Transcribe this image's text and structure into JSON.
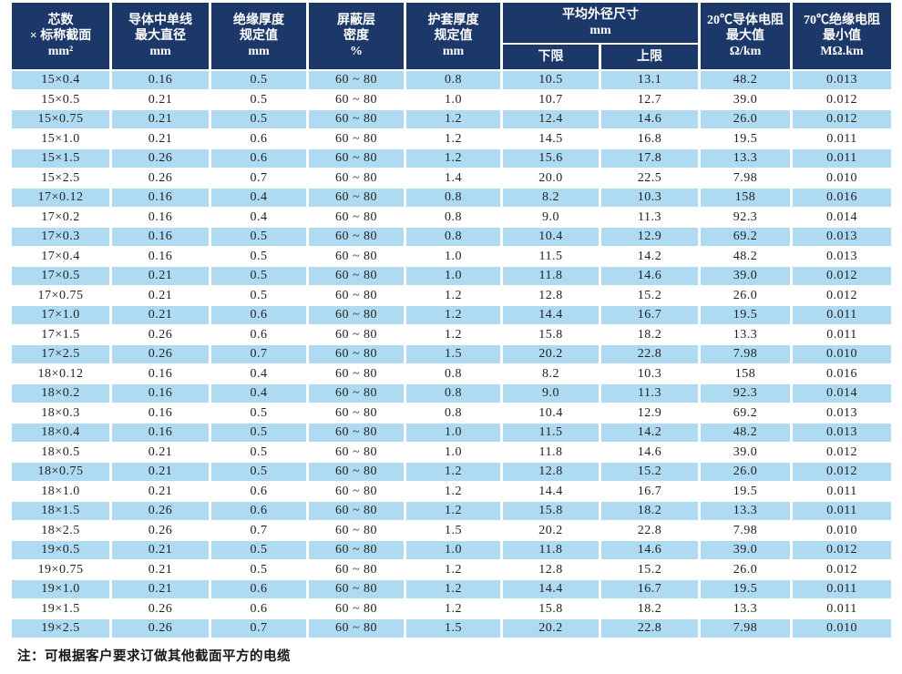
{
  "colors": {
    "header_bg": "#1B3869",
    "header_text": "#FFFFFF",
    "row_alt_bg": "#AFDBF2",
    "row_bg": "#FFFFFF",
    "text": "#1F1F1F"
  },
  "table": {
    "header": {
      "columns": [
        {
          "lines": [
            "芯数",
            "× 标称截面",
            "mm²"
          ]
        },
        {
          "lines": [
            "导体中单线",
            "最大直径",
            "mm"
          ]
        },
        {
          "lines": [
            "绝缘厚度",
            "规定值",
            "mm"
          ]
        },
        {
          "lines": [
            "屏蔽层",
            "密度",
            "%"
          ]
        },
        {
          "lines": [
            "护套厚度",
            "规定值",
            "mm"
          ]
        },
        {
          "lines": [
            "20℃导体电阻",
            "最大值",
            "Ω/km"
          ]
        },
        {
          "lines": [
            "70℃绝缘电阻",
            "最小值",
            "MΩ.km"
          ]
        }
      ],
      "od_group": {
        "lines": [
          "平均外径尺寸",
          "mm"
        ],
        "sub": [
          "下限",
          "上限"
        ]
      }
    },
    "rows": [
      [
        "15×0.4",
        "0.16",
        "0.5",
        "60 ~ 80",
        "0.8",
        "10.5",
        "13.1",
        "48.2",
        "0.013"
      ],
      [
        "15×0.5",
        "0.21",
        "0.5",
        "60 ~ 80",
        "1.0",
        "10.7",
        "12.7",
        "39.0",
        "0.012"
      ],
      [
        "15×0.75",
        "0.21",
        "0.5",
        "60 ~ 80",
        "1.2",
        "12.4",
        "14.6",
        "26.0",
        "0.012"
      ],
      [
        "15×1.0",
        "0.21",
        "0.6",
        "60 ~ 80",
        "1.2",
        "14.5",
        "16.8",
        "19.5",
        "0.011"
      ],
      [
        "15×1.5",
        "0.26",
        "0.6",
        "60 ~ 80",
        "1.2",
        "15.6",
        "17.8",
        "13.3",
        "0.011"
      ],
      [
        "15×2.5",
        "0.26",
        "0.7",
        "60 ~ 80",
        "1.4",
        "20.0",
        "22.5",
        "7.98",
        "0.010"
      ],
      [
        "17×0.12",
        "0.16",
        "0.4",
        "60 ~ 80",
        "0.8",
        "8.2",
        "10.3",
        "158",
        "0.016"
      ],
      [
        "17×0.2",
        "0.16",
        "0.4",
        "60 ~ 80",
        "0.8",
        "9.0",
        "11.3",
        "92.3",
        "0.014"
      ],
      [
        "17×0.3",
        "0.16",
        "0.5",
        "60 ~ 80",
        "0.8",
        "10.4",
        "12.9",
        "69.2",
        "0.013"
      ],
      [
        "17×0.4",
        "0.16",
        "0.5",
        "60 ~ 80",
        "1.0",
        "11.5",
        "14.2",
        "48.2",
        "0.013"
      ],
      [
        "17×0.5",
        "0.21",
        "0.5",
        "60 ~ 80",
        "1.0",
        "11.8",
        "14.6",
        "39.0",
        "0.012"
      ],
      [
        "17×0.75",
        "0.21",
        "0.5",
        "60 ~ 80",
        "1.2",
        "12.8",
        "15.2",
        "26.0",
        "0.012"
      ],
      [
        "17×1.0",
        "0.21",
        "0.6",
        "60 ~ 80",
        "1.2",
        "14.4",
        "16.7",
        "19.5",
        "0.011"
      ],
      [
        "17×1.5",
        "0.26",
        "0.6",
        "60 ~ 80",
        "1.2",
        "15.8",
        "18.2",
        "13.3",
        "0.011"
      ],
      [
        "17×2.5",
        "0.26",
        "0.7",
        "60 ~ 80",
        "1.5",
        "20.2",
        "22.8",
        "7.98",
        "0.010"
      ],
      [
        "18×0.12",
        "0.16",
        "0.4",
        "60 ~ 80",
        "0.8",
        "8.2",
        "10.3",
        "158",
        "0.016"
      ],
      [
        "18×0.2",
        "0.16",
        "0.4",
        "60 ~ 80",
        "0.8",
        "9.0",
        "11.3",
        "92.3",
        "0.014"
      ],
      [
        "18×0.3",
        "0.16",
        "0.5",
        "60 ~ 80",
        "0.8",
        "10.4",
        "12.9",
        "69.2",
        "0.013"
      ],
      [
        "18×0.4",
        "0.16",
        "0.5",
        "60 ~ 80",
        "1.0",
        "11.5",
        "14.2",
        "48.2",
        "0.013"
      ],
      [
        "18×0.5",
        "0.21",
        "0.5",
        "60 ~ 80",
        "1.0",
        "11.8",
        "14.6",
        "39.0",
        "0.012"
      ],
      [
        "18×0.75",
        "0.21",
        "0.5",
        "60 ~ 80",
        "1.2",
        "12.8",
        "15.2",
        "26.0",
        "0.012"
      ],
      [
        "18×1.0",
        "0.21",
        "0.6",
        "60 ~ 80",
        "1.2",
        "14.4",
        "16.7",
        "19.5",
        "0.011"
      ],
      [
        "18×1.5",
        "0.26",
        "0.6",
        "60 ~ 80",
        "1.2",
        "15.8",
        "18.2",
        "13.3",
        "0.011"
      ],
      [
        "18×2.5",
        "0.26",
        "0.7",
        "60 ~ 80",
        "1.5",
        "20.2",
        "22.8",
        "7.98",
        "0.010"
      ],
      [
        "19×0.5",
        "0.21",
        "0.5",
        "60 ~ 80",
        "1.0",
        "11.8",
        "14.6",
        "39.0",
        "0.012"
      ],
      [
        "19×0.75",
        "0.21",
        "0.5",
        "60 ~ 80",
        "1.2",
        "12.8",
        "15.2",
        "26.0",
        "0.012"
      ],
      [
        "19×1.0",
        "0.21",
        "0.6",
        "60 ~ 80",
        "1.2",
        "14.4",
        "16.7",
        "19.5",
        "0.011"
      ],
      [
        "19×1.5",
        "0.26",
        "0.6",
        "60 ~ 80",
        "1.2",
        "15.8",
        "18.2",
        "13.3",
        "0.011"
      ],
      [
        "19×2.5",
        "0.26",
        "0.7",
        "60 ~ 80",
        "1.5",
        "20.2",
        "22.8",
        "7.98",
        "0.010"
      ]
    ]
  },
  "footnote": "注：可根据客户要求订做其他截面平方的电缆"
}
